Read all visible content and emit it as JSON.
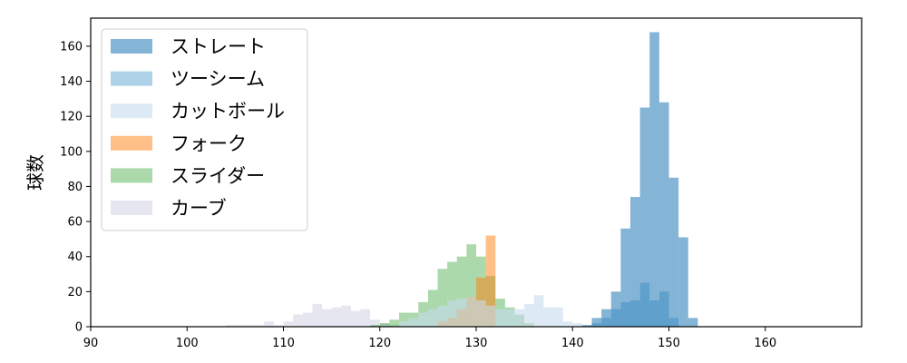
{
  "chart_data": {
    "type": "bar",
    "subtype": "overlapping-histogram",
    "title": "",
    "xlabel": "",
    "ylabel": "球数",
    "xlim": [
      90,
      170
    ],
    "ylim": [
      0,
      176
    ],
    "xticks": [
      90,
      100,
      110,
      120,
      130,
      140,
      150,
      160
    ],
    "yticks": [
      0,
      20,
      40,
      60,
      80,
      100,
      120,
      140,
      160
    ],
    "bin_width": 1,
    "grid": false,
    "legend_position": "top-left",
    "series": [
      {
        "name": "ストレート",
        "color": "#1f77b4",
        "opacity": 0.55,
        "bins": [
          [
            141,
            1
          ],
          [
            142,
            5
          ],
          [
            143,
            10
          ],
          [
            144,
            20
          ],
          [
            145,
            56
          ],
          [
            146,
            74
          ],
          [
            147,
            125
          ],
          [
            148,
            168
          ],
          [
            149,
            128
          ],
          [
            150,
            85
          ],
          [
            151,
            51
          ],
          [
            152,
            5
          ]
        ]
      },
      {
        "name": "ツーシーム",
        "color": "#6baed6",
        "opacity": 0.55,
        "bins": [
          [
            142,
            2
          ],
          [
            143,
            5
          ],
          [
            144,
            10
          ],
          [
            145,
            14
          ],
          [
            146,
            15
          ],
          [
            147,
            25
          ],
          [
            148,
            15
          ],
          [
            149,
            20
          ],
          [
            150,
            5
          ]
        ]
      },
      {
        "name": "カットボール",
        "color": "#c6dbef",
        "opacity": 0.6,
        "bins": [
          [
            122,
            3
          ],
          [
            123,
            5
          ],
          [
            124,
            8
          ],
          [
            125,
            10
          ],
          [
            126,
            12
          ],
          [
            127,
            15
          ],
          [
            128,
            16
          ],
          [
            129,
            17
          ],
          [
            130,
            15
          ],
          [
            131,
            12
          ],
          [
            132,
            10
          ],
          [
            133,
            10
          ],
          [
            134,
            10
          ],
          [
            135,
            13
          ],
          [
            136,
            18
          ],
          [
            137,
            11
          ],
          [
            138,
            11
          ],
          [
            139,
            3
          ],
          [
            140,
            2
          ]
        ]
      },
      {
        "name": "フォーク",
        "color": "#ff7f0e",
        "opacity": 0.5,
        "bins": [
          [
            126,
            3
          ],
          [
            127,
            5
          ],
          [
            128,
            10
          ],
          [
            129,
            17
          ],
          [
            130,
            28
          ],
          [
            131,
            52
          ]
        ]
      },
      {
        "name": "スライダー",
        "color": "#2ca02c",
        "opacity": 0.4,
        "bins": [
          [
            119,
            1
          ],
          [
            120,
            2
          ],
          [
            121,
            4
          ],
          [
            122,
            8
          ],
          [
            123,
            8
          ],
          [
            124,
            14
          ],
          [
            125,
            21
          ],
          [
            126,
            33
          ],
          [
            127,
            37
          ],
          [
            128,
            40
          ],
          [
            129,
            47
          ],
          [
            130,
            40
          ],
          [
            131,
            29
          ],
          [
            132,
            16
          ],
          [
            133,
            11
          ],
          [
            134,
            7
          ],
          [
            135,
            2
          ]
        ]
      },
      {
        "name": "カーブ",
        "color": "#c7c7e0",
        "opacity": 0.45,
        "bins": [
          [
            104,
            1
          ],
          [
            105,
            1
          ],
          [
            106,
            1
          ],
          [
            107,
            1
          ],
          [
            108,
            3
          ],
          [
            109,
            1
          ],
          [
            110,
            3
          ],
          [
            111,
            7
          ],
          [
            112,
            8
          ],
          [
            113,
            13
          ],
          [
            114,
            10
          ],
          [
            115,
            11
          ],
          [
            116,
            12
          ],
          [
            117,
            9
          ],
          [
            118,
            10
          ],
          [
            119,
            4
          ],
          [
            120,
            2
          ],
          [
            121,
            1
          ]
        ]
      }
    ]
  }
}
